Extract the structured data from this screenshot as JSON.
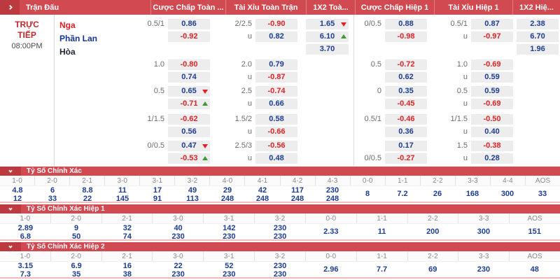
{
  "header": {
    "columns": [
      "Trận Đấu",
      "Cược Chấp Toàn ...",
      "Tài Xỉu Toàn Trận",
      "1X2 Toà...",
      "Cược Chấp Hiệp 1",
      "Tài Xỉu Hiệp 1",
      "1X2 Hiệ..."
    ]
  },
  "match": {
    "status": "TRỰC\nTIẾP",
    "time": "08:00PM",
    "teams": [
      "Nga",
      "Phần Lan",
      "Hòa"
    ]
  },
  "odds_blocks": [
    {
      "rows": [
        {
          "ft_hdp_line": "0.5/1",
          "ft_hdp": "0.86",
          "ft_ou_line": "2/2.5",
          "ft_ou": "-0.90",
          "ft_1x2": "1.65",
          "ft_1x2_trend": "down",
          "h1_hdp_line": "0/0.5",
          "h1_hdp": "0.88",
          "h1_ou_line": "0.5/1",
          "h1_ou": "0.87",
          "h1_1x2": "2.38"
        },
        {
          "ft_hdp": "-0.92",
          "ft_ou_line": "u",
          "ft_ou": "0.82",
          "ft_1x2": "6.10",
          "ft_1x2_trend": "up",
          "h1_hdp": "-0.98",
          "h1_ou_line": "u",
          "h1_ou": "-0.97",
          "h1_1x2": "6.70"
        },
        {
          "ft_1x2": "3.70",
          "h1_1x2": "1.96"
        }
      ]
    },
    {
      "rows": [
        {
          "ft_hdp_line": "1.0",
          "ft_hdp": "-0.80",
          "ft_ou_line": "2.0",
          "ft_ou": "0.79",
          "h1_hdp_line": "0.5",
          "h1_hdp": "-0.72",
          "h1_ou_line": "1.0",
          "h1_ou": "-0.69"
        },
        {
          "ft_hdp": "0.74",
          "ft_ou_line": "u",
          "ft_ou": "-0.87",
          "h1_hdp": "0.62",
          "h1_ou_line": "u",
          "h1_ou": "0.59"
        }
      ]
    },
    {
      "rows": [
        {
          "ft_hdp_line": "0.5",
          "ft_hdp": "0.65",
          "ft_hdp_trend": "down",
          "ft_ou_line": "2.5",
          "ft_ou": "-0.74",
          "h1_hdp_line": "0",
          "h1_hdp": "0.35",
          "h1_ou_line": "0.5",
          "h1_ou": "0.59"
        },
        {
          "ft_hdp": "-0.71",
          "ft_hdp_trend": "up",
          "ft_ou_line": "u",
          "ft_ou": "0.66",
          "h1_hdp": "-0.45",
          "h1_ou_line": "u",
          "h1_ou": "-0.69"
        }
      ]
    },
    {
      "rows": [
        {
          "ft_hdp_line": "1/1.5",
          "ft_hdp": "-0.62",
          "ft_ou_line": "1.5/2",
          "ft_ou": "0.58",
          "h1_hdp_line": "0.5/1",
          "h1_hdp": "-0.46",
          "h1_ou_line": "1/1.5",
          "h1_ou": "-0.50"
        },
        {
          "ft_hdp": "0.56",
          "ft_ou_line": "u",
          "ft_ou": "-0.66",
          "h1_hdp": "0.36",
          "h1_ou_line": "u",
          "h1_ou": "0.40"
        }
      ]
    },
    {
      "rows": [
        {
          "ft_hdp_line": "0/0.5",
          "ft_hdp": "0.47",
          "ft_hdp_trend": "down",
          "ft_ou_line": "2.5/3",
          "ft_ou": "-0.56",
          "h1_hdp": "0.17",
          "h1_ou_line": "1.5",
          "h1_ou": "-0.38"
        },
        {
          "ft_hdp": "-0.53",
          "ft_hdp_trend": "up",
          "ft_ou_line": "u",
          "ft_ou": "0.48",
          "h1_hdp_line": "0/0.5",
          "h1_hdp": "-0.27",
          "h1_ou_line": "u",
          "h1_ou": "0.28"
        }
      ]
    }
  ],
  "score_sections": [
    {
      "title": "Tỷ Số Chính Xác",
      "columns": [
        {
          "score": "1-0",
          "values": [
            "4.8",
            "12"
          ]
        },
        {
          "score": "2-0",
          "values": [
            "6",
            "33"
          ]
        },
        {
          "score": "2-1",
          "values": [
            "8.8",
            "22"
          ]
        },
        {
          "score": "3-0",
          "values": [
            "11",
            "145"
          ]
        },
        {
          "score": "3-1",
          "values": [
            "17",
            "91"
          ]
        },
        {
          "score": "3-2",
          "values": [
            "49",
            "113"
          ]
        },
        {
          "score": "4-0",
          "values": [
            "29",
            "248"
          ]
        },
        {
          "score": "4-1",
          "values": [
            "42",
            "248"
          ]
        },
        {
          "score": "4-2",
          "values": [
            "117",
            "248"
          ]
        },
        {
          "score": "4-3",
          "values": [
            "230",
            "248"
          ]
        },
        {
          "score": "0-0",
          "values": [
            "8"
          ]
        },
        {
          "score": "1-1",
          "values": [
            "7.2"
          ]
        },
        {
          "score": "2-2",
          "values": [
            "26"
          ]
        },
        {
          "score": "3-3",
          "values": [
            "168"
          ]
        },
        {
          "score": "4-4",
          "values": [
            "300"
          ]
        },
        {
          "score": "AOS",
          "values": [
            "33"
          ]
        }
      ]
    },
    {
      "title": "Tỷ Số Chính Xác Hiệp 1",
      "columns": [
        {
          "score": "1-0",
          "values": [
            "2.89",
            "6.8"
          ]
        },
        {
          "score": "2-0",
          "values": [
            "9",
            "50"
          ]
        },
        {
          "score": "2-1",
          "values": [
            "32",
            "74"
          ]
        },
        {
          "score": "3-0",
          "values": [
            "40",
            "230"
          ]
        },
        {
          "score": "3-1",
          "values": [
            "142",
            "230"
          ]
        },
        {
          "score": "3-2",
          "values": [
            "230",
            "230"
          ]
        },
        {
          "score": "0-0",
          "values": [
            "2.33"
          ]
        },
        {
          "score": "1-1",
          "values": [
            "11"
          ]
        },
        {
          "score": "2-2",
          "values": [
            "200"
          ]
        },
        {
          "score": "3-3",
          "values": [
            "300"
          ]
        },
        {
          "score": "AOS",
          "values": [
            "151"
          ]
        }
      ]
    },
    {
      "title": "Tỷ Số Chính Xác Hiệp 2",
      "columns": [
        {
          "score": "1-0",
          "values": [
            "3.15",
            "7.3"
          ]
        },
        {
          "score": "2-0",
          "values": [
            "6.9",
            "35"
          ]
        },
        {
          "score": "2-1",
          "values": [
            "16",
            "38"
          ]
        },
        {
          "score": "3-0",
          "values": [
            "22",
            "230"
          ]
        },
        {
          "score": "3-1",
          "values": [
            "52",
            "230"
          ]
        },
        {
          "score": "3-2",
          "values": [
            "230",
            "230"
          ]
        },
        {
          "score": "0-0",
          "values": [
            "2.96"
          ]
        },
        {
          "score": "1-1",
          "values": [
            "7.7"
          ]
        },
        {
          "score": "2-2",
          "values": [
            "69"
          ]
        },
        {
          "score": "3-3",
          "values": [
            "230"
          ]
        },
        {
          "score": "AOS",
          "values": [
            "48"
          ]
        }
      ]
    }
  ],
  "colors": {
    "header_red": "#d24a51",
    "header_dark_red": "#bd3940",
    "odds_blue": "#1c3d8f",
    "odds_red": "#dc2427",
    "trend_green": "#3a9b35",
    "trend_red": "#dc2427",
    "status_red": "#c2272e",
    "team_home_red": "#e01e24",
    "team_away_blue": "#16338e",
    "team_draw_dark": "#1c2433",
    "cell_bg": "#ededee",
    "label_gray": "#6b6b6b",
    "pink_divider": "#f3babc"
  }
}
